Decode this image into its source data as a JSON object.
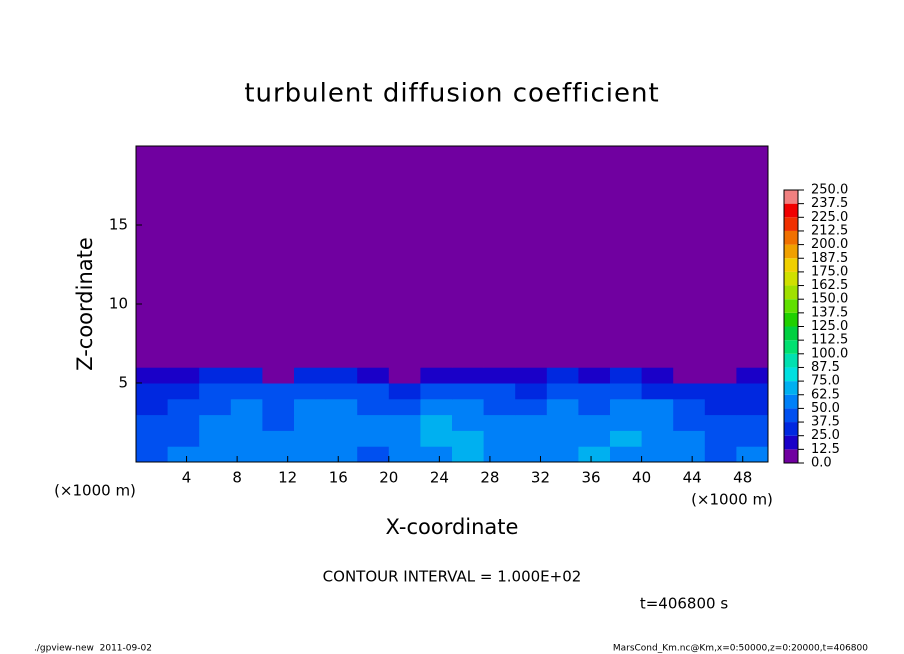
{
  "chart_data": {
    "type": "heatmap",
    "title": "turbulent diffusion coefficient",
    "x_label": "X-coordinate",
    "y_label": "Z-coordinate",
    "x_unit": "(×1000 m)",
    "y_unit": "(×1000 m)",
    "xlim": [
      0,
      50
    ],
    "ylim": [
      0,
      20
    ],
    "xticks": [
      4,
      8,
      12,
      16,
      20,
      24,
      28,
      32,
      36,
      40,
      44,
      48
    ],
    "yticks": [
      5,
      10,
      15
    ],
    "x_edges": [
      0,
      2.5,
      5,
      7.5,
      10,
      12.5,
      15,
      17.5,
      20,
      22.5,
      25,
      27.5,
      30,
      32.5,
      35,
      37.5,
      40,
      42.5,
      45,
      47.5,
      50
    ],
    "y_edges": [
      0,
      1,
      2,
      3,
      4,
      5,
      6,
      20
    ],
    "values": [
      [
        45,
        50,
        55,
        50,
        60,
        55,
        50,
        45,
        55,
        62,
        70,
        60,
        55,
        50,
        65,
        55,
        60,
        50,
        45,
        50
      ],
      [
        40,
        45,
        50,
        55,
        50,
        60,
        55,
        50,
        60,
        70,
        65,
        55,
        50,
        55,
        60,
        65,
        55,
        50,
        45,
        45
      ],
      [
        40,
        40,
        50,
        55,
        45,
        55,
        50,
        55,
        50,
        65,
        60,
        50,
        50,
        55,
        55,
        60,
        55,
        45,
        40,
        40
      ],
      [
        35,
        40,
        45,
        50,
        45,
        50,
        50,
        45,
        45,
        55,
        50,
        45,
        45,
        50,
        45,
        50,
        50,
        40,
        35,
        35
      ],
      [
        30,
        35,
        40,
        45,
        40,
        40,
        45,
        40,
        35,
        40,
        45,
        40,
        35,
        40,
        40,
        40,
        35,
        30,
        25,
        35
      ],
      [
        20,
        15,
        25,
        30,
        10,
        25,
        30,
        15,
        10,
        20,
        20,
        15,
        20,
        25,
        20,
        30,
        15,
        10,
        5,
        20
      ],
      [
        5,
        5,
        5,
        5,
        5,
        5,
        5,
        5,
        5,
        5,
        5,
        5,
        5,
        5,
        5,
        5,
        5,
        5,
        5,
        5
      ]
    ],
    "levels": [
      {
        "value": 0,
        "label": "0.0"
      },
      12.5,
      {
        "value": 25,
        "label": "25.0"
      },
      37.5,
      {
        "value": 50,
        "label": "50.0"
      },
      62.5,
      {
        "value": 75,
        "label": "75.0"
      },
      87.5,
      {
        "value": 100,
        "label": "100.0"
      },
      112.5,
      {
        "value": 125,
        "label": "125.0"
      },
      137.5,
      {
        "value": 150,
        "label": "150.0"
      },
      162.5,
      {
        "value": 175,
        "label": "175.0"
      },
      187.5,
      {
        "value": 200,
        "label": "200.0"
      },
      212.5,
      {
        "value": 225,
        "label": "225.0"
      },
      237.5,
      {
        "value": 250,
        "label": "250.0"
      }
    ],
    "colors": [
      "#7000a0",
      "#1a00c8",
      "#0028e0",
      "#0050f0",
      "#0080f8",
      "#00b0f0",
      "#00e0e0",
      "#00e0b0",
      "#00e070",
      "#00d040",
      "#20d000",
      "#60e000",
      "#a0e000",
      "#d0e000",
      "#f0d000",
      "#f0a000",
      "#f07000",
      "#f03000",
      "#f00000",
      "#f08080"
    ],
    "annotations": [
      "CONTOUR INTERVAL = 1.000E+02",
      "t=406800 s"
    ],
    "footer_left": "./gpview-new  2011-09-02",
    "footer_right": "MarsCond_Km.nc@Km,x=0:50000,z=0:20000,t=406800"
  }
}
